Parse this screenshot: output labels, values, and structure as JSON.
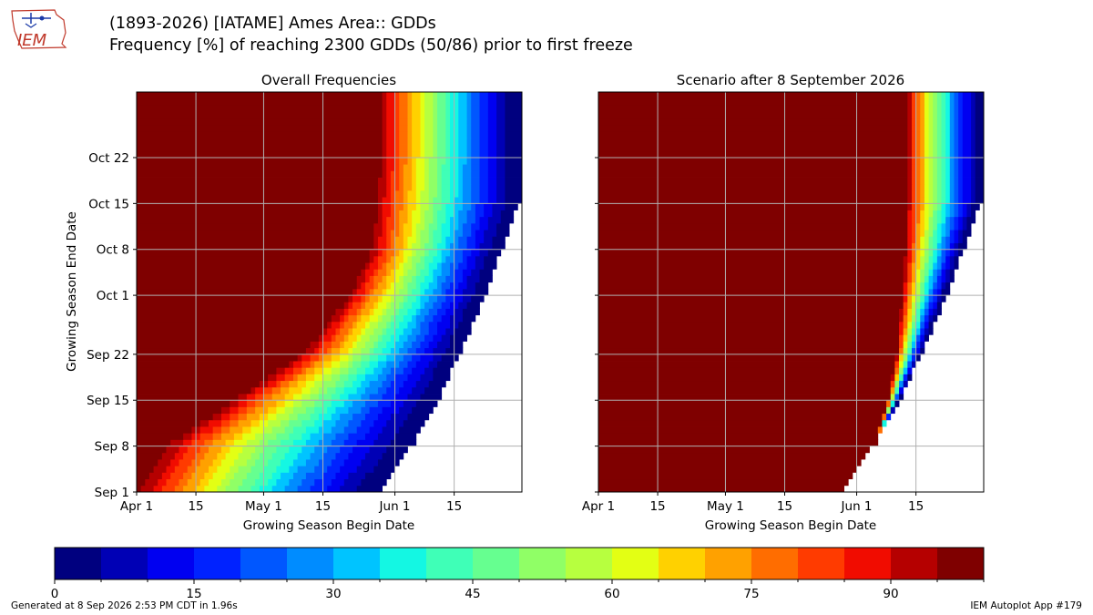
{
  "header": {
    "logo_text": "IEM",
    "title_line1": "(1893-2026) [IATAME] Ames Area:: GDDs",
    "title_line2": "Frequency [%] of reaching 2300 GDDs (50/86) prior to first freeze"
  },
  "footer": {
    "generated": "Generated at 8 Sep 2026 2:53 PM CDT in 1.96s",
    "app": "IEM Autoplot App #179"
  },
  "colors": {
    "jet_levels": [
      "#00007f",
      "#0000b5",
      "#0000f1",
      "#0022ff",
      "#0057ff",
      "#008cff",
      "#00c4ff",
      "#14f7e3",
      "#3fffb7",
      "#66ff90",
      "#90ff66",
      "#b7ff3f",
      "#e3ff14",
      "#ffd100",
      "#ffa100",
      "#ff6d00",
      "#ff3b00",
      "#f10c00",
      "#b50000",
      "#7f0000"
    ],
    "grid": "#b0b0b0",
    "nodata": "#ffffff"
  },
  "chart_data": [
    {
      "type": "heatmap",
      "title": "Overall Frequencies",
      "xlabel": "Growing Season Begin Date",
      "ylabel": "Growing Season End Date",
      "x_ticks": [
        "Apr 1",
        "15",
        "May 1",
        "15",
        "Jun 1",
        "15"
      ],
      "y_ticks": [
        "Sep 1",
        "Sep 8",
        "Sep 15",
        "Sep 22",
        "Oct 1",
        "Oct 8",
        "Oct 15",
        "Oct 22"
      ],
      "x_range": [
        "Apr 1",
        "Jun 30"
      ],
      "y_range": [
        "Sep 1",
        "Oct 31"
      ],
      "grid": true,
      "transition_start_begin_date_by_end": [
        {
          "end": "Sep 1",
          "begin": "Apr 1"
        },
        {
          "end": "Sep 8",
          "begin": "Apr 8"
        },
        {
          "end": "Sep 15",
          "begin": "Apr 24"
        },
        {
          "end": "Sep 22",
          "begin": "May 10"
        },
        {
          "end": "Oct 1",
          "begin": "May 21"
        },
        {
          "end": "Oct 8",
          "begin": "May 26"
        },
        {
          "end": "Oct 22",
          "begin": "May 28"
        }
      ],
      "last_possible_begin_date_by_end": [
        {
          "end": "Sep 1",
          "begin": "May 28"
        },
        {
          "end": "Sep 8",
          "begin": "Jun 5"
        },
        {
          "end": "Sep 15",
          "begin": "Jun 11"
        },
        {
          "end": "Sep 22",
          "begin": "Jun 16"
        },
        {
          "end": "Oct 1",
          "begin": "Jun 22"
        },
        {
          "end": "Oct 8",
          "begin": "Jun 26"
        },
        {
          "end": "Oct 15",
          "begin": "Jun 30"
        }
      ]
    },
    {
      "type": "heatmap",
      "title": "Scenario after 8 September 2026",
      "xlabel": "Growing Season Begin Date",
      "ylabel": "",
      "x_ticks": [
        "Apr 1",
        "15",
        "May 1",
        "15",
        "Jun 1",
        "15"
      ],
      "y_ticks": [
        "Sep 1",
        "Sep 8",
        "Sep 15",
        "Sep 22",
        "Oct 1",
        "Oct 8",
        "Oct 15",
        "Oct 22"
      ],
      "x_range": [
        "Apr 1",
        "Jun 30"
      ],
      "y_range": [
        "Sep 1",
        "Oct 31"
      ],
      "grid": true,
      "transition_start_begin_date_by_end": [
        {
          "end": "Sep 8",
          "begin": "Jun 5"
        },
        {
          "end": "Sep 15",
          "begin": "Jun 8"
        },
        {
          "end": "Sep 22",
          "begin": "Jun 10"
        },
        {
          "end": "Oct 8",
          "begin": "Jun 12"
        },
        {
          "end": "Oct 31",
          "begin": "Jun 12"
        }
      ],
      "last_possible_begin_date_by_end": [
        {
          "end": "Sep 1",
          "begin": "May 28"
        },
        {
          "end": "Sep 8",
          "begin": "Jun 5"
        },
        {
          "end": "Sep 15",
          "begin": "Jun 11"
        },
        {
          "end": "Sep 22",
          "begin": "Jun 16"
        },
        {
          "end": "Oct 1",
          "begin": "Jun 22"
        },
        {
          "end": "Oct 8",
          "begin": "Jun 26"
        },
        {
          "end": "Oct 15",
          "begin": "Jun 30"
        }
      ]
    }
  ],
  "colorbar": {
    "min": 0,
    "max": 100,
    "step": 5,
    "ticks": [
      "0",
      "15",
      "30",
      "45",
      "60",
      "75",
      "90"
    ]
  }
}
